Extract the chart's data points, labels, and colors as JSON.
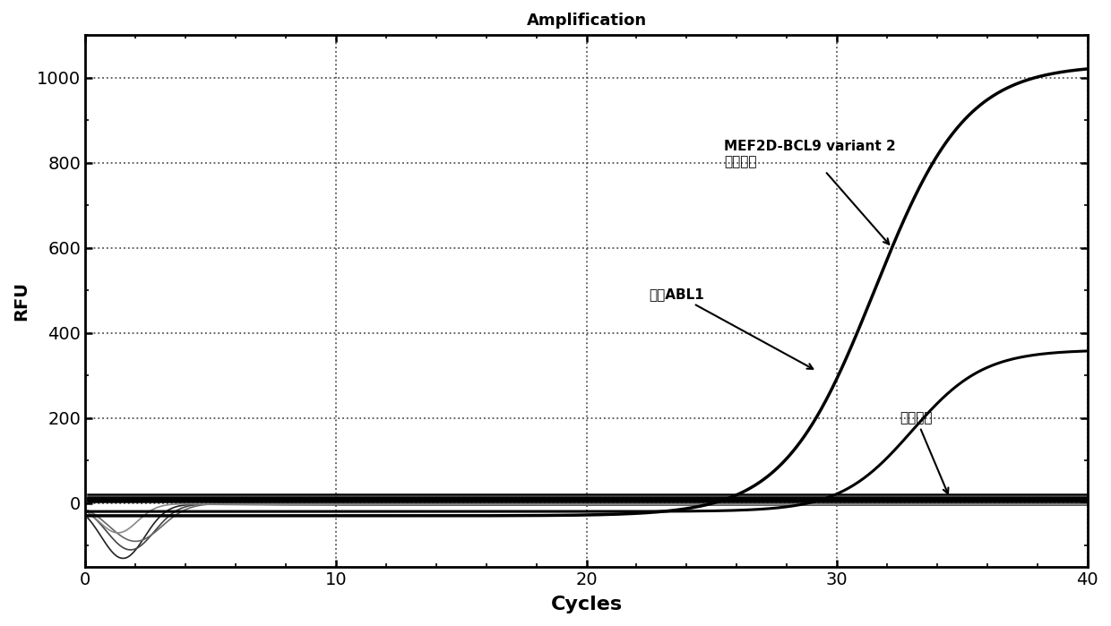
{
  "title": "Amplification",
  "xlabel": "Cycles",
  "ylabel": "RFU",
  "xlim": [
    0,
    40
  ],
  "ylim": [
    -150,
    1100
  ],
  "yticks": [
    0,
    200,
    400,
    600,
    800,
    1000
  ],
  "xticks": [
    0,
    10,
    20,
    30,
    40
  ],
  "annotation_variant2": "MEF2D-BCL9 variant 2\n阳性对照",
  "annotation_abl1": "内参ABL1",
  "annotation_negative": "阴性对照",
  "bg_color": "#ffffff"
}
